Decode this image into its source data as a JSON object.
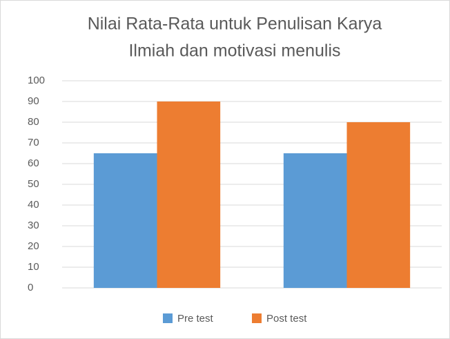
{
  "chart_data": {
    "type": "bar",
    "title": [
      "Nilai Rata-Rata untuk Penulisan Karya",
      "Ilmiah dan motivasi menulis"
    ],
    "categories": [
      null,
      null
    ],
    "series": [
      {
        "name": "Pre test",
        "color": "#5b9bd5",
        "values": [
          65,
          65
        ]
      },
      {
        "name": "Post test",
        "color": "#ed7d31",
        "values": [
          90,
          80
        ]
      }
    ],
    "ylim": [
      0,
      100
    ],
    "yticks": [
      0,
      10,
      20,
      30,
      40,
      50,
      60,
      70,
      80,
      90,
      100
    ],
    "grid": true,
    "legend": "bottom"
  }
}
